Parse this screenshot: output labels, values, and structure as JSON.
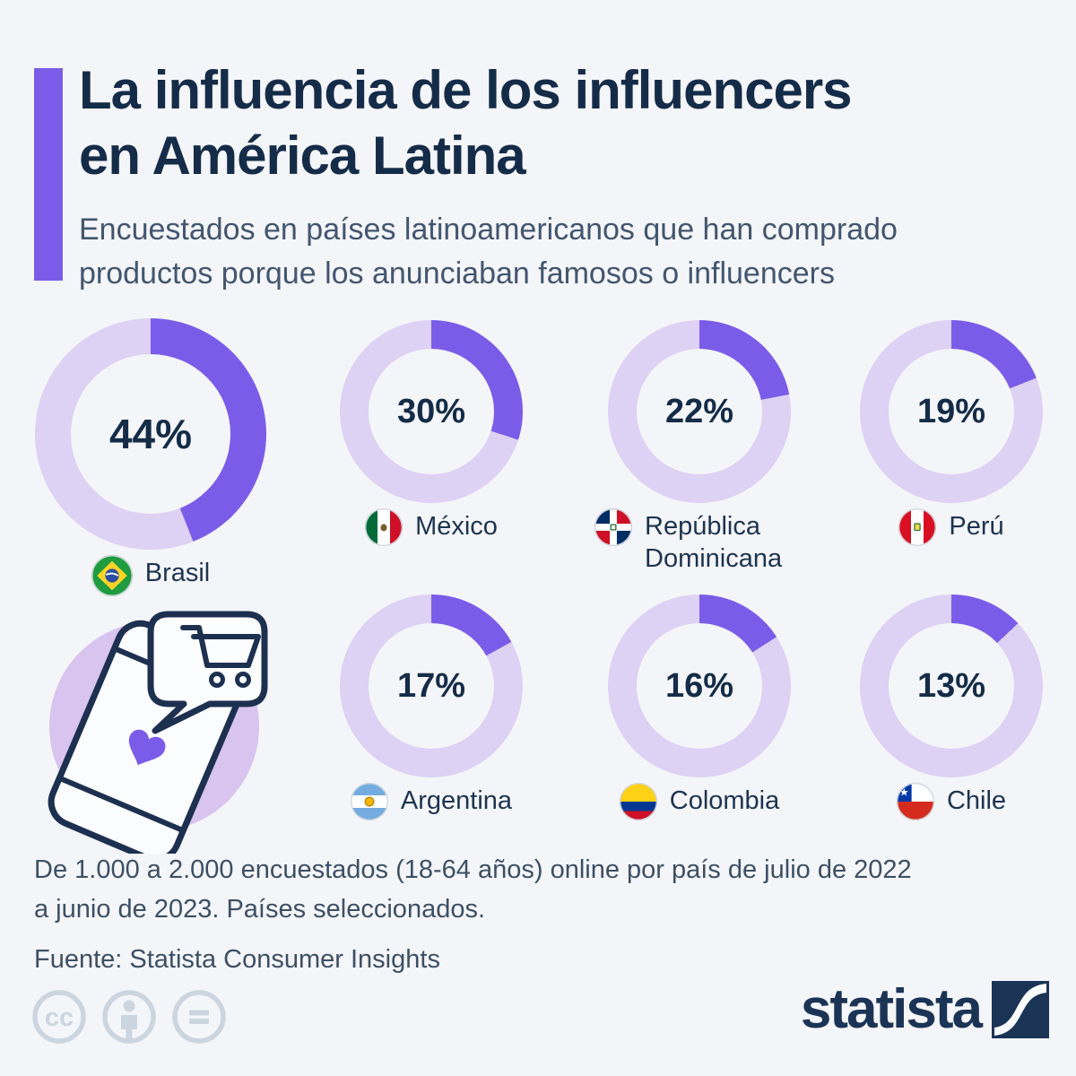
{
  "header": {
    "title_lines": [
      "La influencia de los influencers",
      "en América Latina"
    ],
    "subtitle_lines": [
      "Encuestados en países latinoamericanos que han comprado",
      "productos porque los anunciaban famosos o influencers"
    ]
  },
  "chart_data": {
    "type": "pie",
    "variant": "donut_multiples",
    "unit": "%",
    "title": "La influencia de los influencers en América Latina",
    "subtitle": "Encuestados en países latinoamericanos que han comprado productos porque los anunciaban famosos o influencers",
    "segment_start": "12 o'clock, clockwise",
    "legend": "none",
    "categories": [
      "Brasil",
      "México",
      "República Dominicana",
      "Perú",
      "Argentina",
      "Colombia",
      "Chile"
    ],
    "values": [
      44,
      30,
      22,
      19,
      17,
      16,
      13
    ],
    "items": [
      {
        "country": "Brasil",
        "value": 44,
        "value_label": "44%",
        "flag": "brazil",
        "emphasis": "large"
      },
      {
        "country": "México",
        "value": 30,
        "value_label": "30%",
        "flag": "mexico"
      },
      {
        "country": "República Dominicana",
        "value": 22,
        "value_label": "22%",
        "flag": "dominican-republic"
      },
      {
        "country": "Perú",
        "value": 19,
        "value_label": "19%",
        "flag": "peru"
      },
      {
        "country": "Argentina",
        "value": 17,
        "value_label": "17%",
        "flag": "argentina"
      },
      {
        "country": "Colombia",
        "value": 16,
        "value_label": "16%",
        "flag": "colombia"
      },
      {
        "country": "Chile",
        "value": 13,
        "value_label": "13%",
        "flag": "chile"
      }
    ],
    "colors": {
      "filled": "#7b5ce8",
      "track": "#ddd1f4",
      "value_text": "#142c47",
      "background": "#f4f5f8"
    }
  },
  "illustration": {
    "name": "phone-shopping-illustration"
  },
  "footnote": {
    "lines": [
      "De 1.000 a 2.000 encuestados (18-64 años) online por país de julio de 2022",
      "a junio de 2023. Países seleccionados."
    ],
    "source": "Fuente: Statista Consumer Insights"
  },
  "footer": {
    "brand": "statista",
    "license_icons": [
      "cc-icon",
      "attribution-icon",
      "no-derivatives-icon"
    ]
  }
}
